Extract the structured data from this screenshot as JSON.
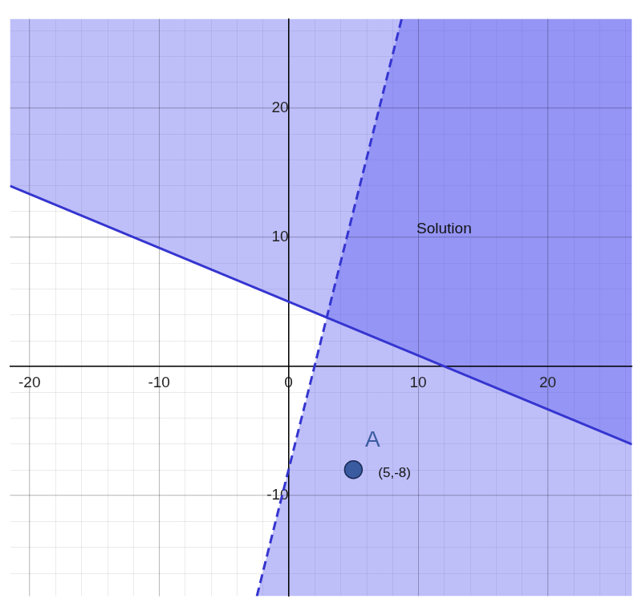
{
  "chart_data": {
    "type": "scatter",
    "xlim": [
      -21.5,
      26.5
    ],
    "ylim": [
      -17.8,
      26.9
    ],
    "xticks": [
      -20,
      -10,
      0,
      10,
      20
    ],
    "yticks": [
      -10,
      10,
      20
    ],
    "grid": true,
    "series": [
      {
        "type": "area",
        "color": "#5050f0",
        "x": [
          -21.5,
          26.5,
          26.5,
          -21.5
        ],
        "values": [
          13.96,
          -6.04,
          26.9,
          26.9
        ]
      },
      {
        "type": "area",
        "color": "#5050f0",
        "x": [
          -2.45,
          8.725,
          26.5,
          26.5
        ],
        "values": [
          -17.8,
          26.9,
          26.9,
          -17.8
        ]
      },
      {
        "type": "line",
        "color": "#3535d0",
        "line_style": "solid",
        "x": [
          -21.5,
          26.5
        ],
        "values": [
          13.96,
          -6.04
        ]
      },
      {
        "type": "line",
        "color": "#3535d0",
        "line_style": "dashed",
        "x": [
          -2.45,
          8.725
        ],
        "values": [
          -17.8,
          26.9
        ]
      },
      {
        "name": "A",
        "type": "scatter",
        "marker": "circle",
        "color": "#3a5ba0",
        "x": [
          5
        ],
        "values": [
          -8
        ],
        "value_labels": [
          "(5,-8)"
        ]
      }
    ],
    "annotations": [
      {
        "text": "Solution",
        "x": 12,
        "y": 10.6
      }
    ]
  }
}
